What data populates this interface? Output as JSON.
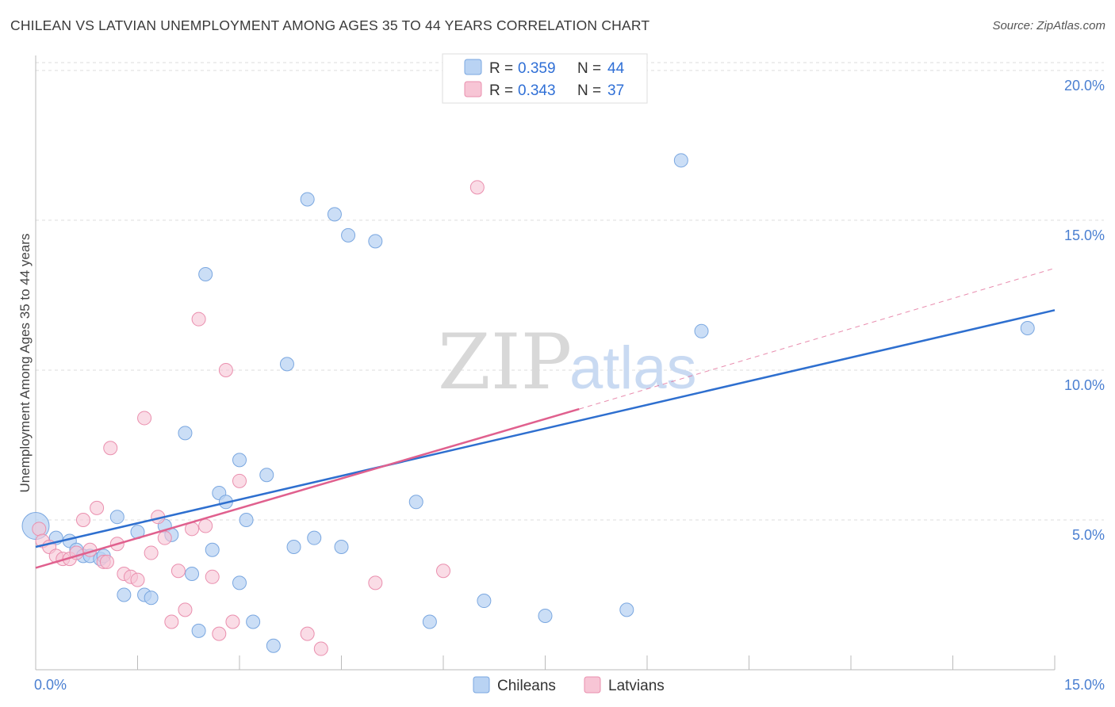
{
  "title": "CHILEAN VS LATVIAN UNEMPLOYMENT AMONG AGES 35 TO 44 YEARS CORRELATION CHART",
  "source": "Source: ZipAtlas.com",
  "watermark": {
    "zip": "ZIP",
    "atlas": "atlas"
  },
  "colors": {
    "blue_fill": "#b9d3f3",
    "blue_stroke": "#7aa7e0",
    "blue_line": "#2e6fcf",
    "pink_fill": "#f7c5d5",
    "pink_stroke": "#ea8fae",
    "pink_line": "#e0608e",
    "grid": "#dddddd",
    "tick_label": "#4a7fd1"
  },
  "legend": {
    "rows": [
      {
        "r_label": "R = ",
        "r_value": "0.359",
        "n_label": "N = ",
        "n_value": "44",
        "series": "Chileans"
      },
      {
        "r_label": "R = ",
        "r_value": "0.343",
        "n_label": "N = ",
        "n_value": "37",
        "series": "Latvians"
      }
    ]
  },
  "chart_data": {
    "type": "scatter",
    "title": "CHILEAN VS LATVIAN UNEMPLOYMENT AMONG AGES 35 TO 44 YEARS CORRELATION CHART",
    "xlabel": "",
    "ylabel": "Unemployment Among Ages 35 to 44 years",
    "xlim": [
      0,
      15
    ],
    "ylim": [
      0,
      20.5
    ],
    "x_tick_labels": [
      "0.0%",
      "15.0%"
    ],
    "y_ticks": [
      5,
      10,
      15,
      20
    ],
    "y_tick_labels": [
      "5.0%",
      "10.0%",
      "15.0%",
      "20.0%"
    ],
    "series": [
      {
        "name": "Chileans",
        "x": [
          0.0,
          0.3,
          0.5,
          0.6,
          0.7,
          0.8,
          0.95,
          1.0,
          1.2,
          1.3,
          1.5,
          1.6,
          1.7,
          1.9,
          2.0,
          2.2,
          2.3,
          2.4,
          2.5,
          2.6,
          2.7,
          2.8,
          3.0,
          3.0,
          3.1,
          3.2,
          3.4,
          3.5,
          3.7,
          3.8,
          4.0,
          4.1,
          4.4,
          4.5,
          4.6,
          5.0,
          5.6,
          5.8,
          6.6,
          7.5,
          8.7,
          9.5,
          9.8,
          14.6
        ],
        "y": [
          4.8,
          4.4,
          4.3,
          4.0,
          3.8,
          3.8,
          3.7,
          3.8,
          5.1,
          2.5,
          4.6,
          2.5,
          2.4,
          4.8,
          4.5,
          7.9,
          3.2,
          1.3,
          13.2,
          4.0,
          5.9,
          5.6,
          7.0,
          2.9,
          5.0,
          1.6,
          6.5,
          0.8,
          10.2,
          4.1,
          15.7,
          4.4,
          15.2,
          4.1,
          14.5,
          14.3,
          5.6,
          1.6,
          2.3,
          1.8,
          2.0,
          17.0,
          11.3,
          11.4
        ]
      },
      {
        "name": "Latvians",
        "x": [
          0.05,
          0.1,
          0.2,
          0.3,
          0.4,
          0.5,
          0.6,
          0.7,
          0.8,
          0.9,
          1.0,
          1.05,
          1.1,
          1.2,
          1.3,
          1.4,
          1.5,
          1.6,
          1.7,
          1.8,
          1.9,
          2.0,
          2.1,
          2.2,
          2.3,
          2.4,
          2.5,
          2.6,
          2.7,
          2.8,
          2.9,
          3.0,
          4.0,
          4.2,
          5.0,
          6.0,
          6.5
        ],
        "y": [
          4.7,
          4.3,
          4.1,
          3.8,
          3.7,
          3.7,
          3.9,
          5.0,
          4.0,
          5.4,
          3.6,
          3.6,
          7.4,
          4.2,
          3.2,
          3.1,
          3.0,
          8.4,
          3.9,
          5.1,
          4.4,
          1.6,
          3.3,
          2.0,
          4.7,
          11.7,
          4.8,
          3.1,
          1.2,
          10.0,
          1.6,
          6.3,
          1.2,
          0.7,
          2.9,
          3.3,
          16.1
        ]
      }
    ],
    "trend_lines": [
      {
        "series": "Chileans",
        "x": [
          0,
          15
        ],
        "y": [
          4.1,
          12.0
        ],
        "style": "solid"
      },
      {
        "series": "Latvians",
        "x": [
          0,
          8
        ],
        "y": [
          3.4,
          8.7
        ],
        "style": "solid"
      },
      {
        "series": "Latvians",
        "x": [
          8,
          15
        ],
        "y": [
          8.7,
          13.4
        ],
        "style": "dashed"
      }
    ]
  }
}
